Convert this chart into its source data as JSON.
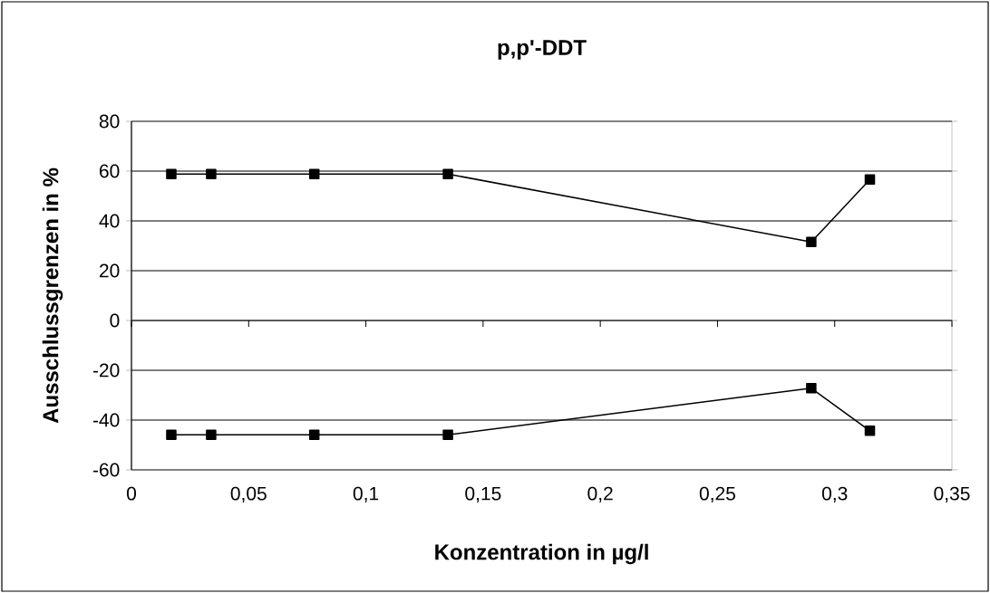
{
  "chart_data": {
    "type": "line",
    "title": "p,p'-DDT",
    "xlabel": "Konzentration in µg/l",
    "ylabel": "Ausschlussgrenzen in %",
    "x": [
      0.017,
      0.034,
      0.078,
      0.135,
      0.29,
      0.315
    ],
    "series": [
      {
        "color": "#000000",
        "values": [
          58.8,
          58.8,
          58.8,
          58.8,
          31.5,
          56.6
        ]
      },
      {
        "color": "#000000",
        "values": [
          -45.9,
          -45.9,
          -45.9,
          -45.9,
          -27.2,
          -44.3
        ]
      }
    ],
    "xlim": [
      0,
      0.35
    ],
    "xticks": [
      {
        "value": 0,
        "label": "0"
      },
      {
        "value": 0.05,
        "label": "0,05"
      },
      {
        "value": 0.1,
        "label": "0,1"
      },
      {
        "value": 0.15,
        "label": "0,15"
      },
      {
        "value": 0.2,
        "label": "0,2"
      },
      {
        "value": 0.25,
        "label": "0,25"
      },
      {
        "value": 0.3,
        "label": "0,3"
      },
      {
        "value": 0.35,
        "label": "0,35"
      }
    ],
    "ylim": [
      -60,
      80
    ],
    "yticks": [
      -60,
      -40,
      -20,
      0,
      20,
      40,
      60,
      80
    ],
    "grid": "y",
    "marker": "square",
    "line_style": "solid"
  }
}
